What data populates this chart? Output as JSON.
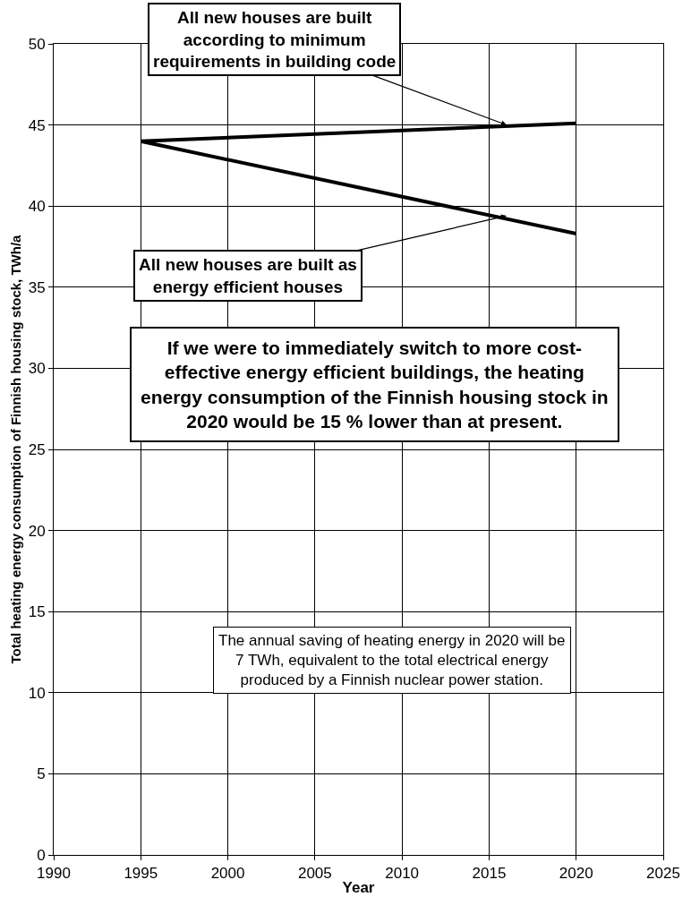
{
  "chart_data": {
    "type": "line",
    "xlabel": "Year",
    "ylabel": "Total heating energy consumption of Finnish housing stock, TWh/a",
    "series": [
      {
        "color": "#000000",
        "values": [
          44.0,
          45.1
        ]
      },
      {
        "color": "#000000",
        "values": [
          44.0,
          38.3
        ]
      }
    ],
    "x": [
      1995,
      2020
    ],
    "xlim": [
      1990,
      2025
    ],
    "xticks": [
      1990,
      1995,
      2000,
      2005,
      2010,
      2015,
      2020,
      2025
    ],
    "ylim": [
      0,
      50
    ],
    "yticks": [
      0,
      5,
      10,
      15,
      20,
      25,
      30,
      35,
      40,
      45,
      50
    ],
    "grid": true,
    "marker": "none",
    "line_style": "solid",
    "annotations": [
      {
        "text": "All new houses are built\naccording to minimum\nrequirements in building code",
        "x": 2016,
        "y": 45.0
      },
      {
        "text": "All new houses are built as\nenergy efficient houses",
        "x": 2016,
        "y": 39.4
      },
      "If we were to immediately switch to more cost-\neffective energy efficient buildings, the heating\nenergy consumption of the Finnish housing stock in\n2020 would be 15 % lower than at present.",
      "The annual saving of heating energy in 2020 will be\n7 TWh, equivalent to the total electrical energy\nproduced by a Finnish nuclear power station."
    ]
  }
}
